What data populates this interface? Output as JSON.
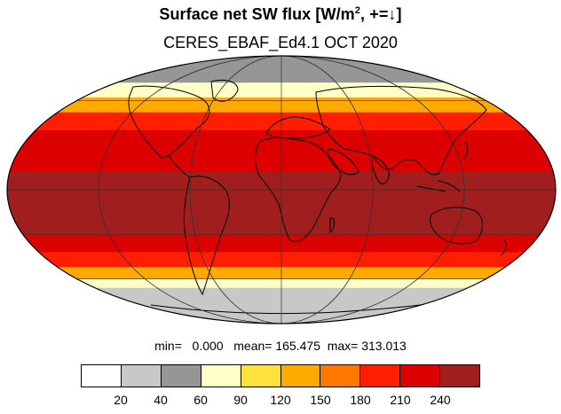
{
  "title": {
    "main_prefix": "Surface net SW flux [W/m",
    "main_sup": "2",
    "main_suffix": ", +=↓]",
    "subtitle": "CERES_EBAF_Ed4.1 OCT 2020"
  },
  "stats": {
    "text": "min=   0.000   mean= 165.475  max= 313.013"
  },
  "colorbar": {
    "colors": [
      "#ffffff",
      "#c8c8c8",
      "#969696",
      "#ffffc8",
      "#ffe13c",
      "#ffaa00",
      "#ff7800",
      "#ff1e00",
      "#dc0000",
      "#a01e1e"
    ],
    "labels": [
      "20",
      "40",
      "60",
      "90",
      "120",
      "150",
      "180",
      "210",
      "240"
    ]
  },
  "map": {
    "projection": "Mollweide (global)",
    "bands": [
      {
        "lat_from": 90,
        "lat_to": 72,
        "color": "#969696"
      },
      {
        "lat_from": 72,
        "lat_to": 62,
        "color": "#ffffc8"
      },
      {
        "lat_from": 62,
        "lat_to": 52,
        "color": "#ffaa00"
      },
      {
        "lat_from": 52,
        "lat_to": 40,
        "color": "#ff1e00"
      },
      {
        "lat_from": 40,
        "lat_to": 28,
        "color": "#dc0000"
      },
      {
        "lat_from": 28,
        "lat_to": 12,
        "color": "#dc0000"
      },
      {
        "lat_from": 12,
        "lat_to": -30,
        "color": "#a01e1e"
      },
      {
        "lat_from": -30,
        "lat_to": -42,
        "color": "#dc0000"
      },
      {
        "lat_from": -42,
        "lat_to": -52,
        "color": "#ff1e00"
      },
      {
        "lat_from": -52,
        "lat_to": -60,
        "color": "#ffaa00"
      },
      {
        "lat_from": -60,
        "lat_to": -66,
        "color": "#ffffc8"
      },
      {
        "lat_from": -66,
        "lat_to": -90,
        "color": "#c8c8c8"
      }
    ]
  }
}
